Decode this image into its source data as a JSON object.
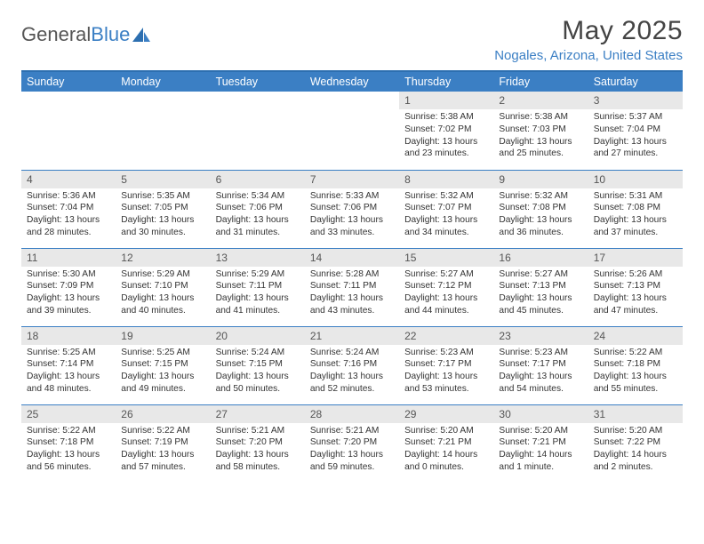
{
  "logo": {
    "text_a": "General",
    "text_b": "Blue"
  },
  "header": {
    "month_title": "May 2025",
    "location": "Nogales, Arizona, United States"
  },
  "styling": {
    "header_bg": "#3b7fc4",
    "header_text_color": "#ffffff",
    "daynum_bg": "#e8e8e8",
    "cell_border_color": "#3b7fc4",
    "body_text_color": "#333333",
    "title_color": "#444444",
    "location_color": "#3b7fc4",
    "font_family": "Arial",
    "title_fontsize_pt": 22,
    "location_fontsize_pt": 11,
    "dayhead_fontsize_pt": 9,
    "cell_fontsize_pt": 7.5
  },
  "day_headers": [
    "Sunday",
    "Monday",
    "Tuesday",
    "Wednesday",
    "Thursday",
    "Friday",
    "Saturday"
  ],
  "weeks": [
    [
      {
        "num": "",
        "sunrise": "",
        "sunset": "",
        "daylight": ""
      },
      {
        "num": "",
        "sunrise": "",
        "sunset": "",
        "daylight": ""
      },
      {
        "num": "",
        "sunrise": "",
        "sunset": "",
        "daylight": ""
      },
      {
        "num": "",
        "sunrise": "",
        "sunset": "",
        "daylight": ""
      },
      {
        "num": "1",
        "sunrise": "Sunrise: 5:38 AM",
        "sunset": "Sunset: 7:02 PM",
        "daylight": "Daylight: 13 hours and 23 minutes."
      },
      {
        "num": "2",
        "sunrise": "Sunrise: 5:38 AM",
        "sunset": "Sunset: 7:03 PM",
        "daylight": "Daylight: 13 hours and 25 minutes."
      },
      {
        "num": "3",
        "sunrise": "Sunrise: 5:37 AM",
        "sunset": "Sunset: 7:04 PM",
        "daylight": "Daylight: 13 hours and 27 minutes."
      }
    ],
    [
      {
        "num": "4",
        "sunrise": "Sunrise: 5:36 AM",
        "sunset": "Sunset: 7:04 PM",
        "daylight": "Daylight: 13 hours and 28 minutes."
      },
      {
        "num": "5",
        "sunrise": "Sunrise: 5:35 AM",
        "sunset": "Sunset: 7:05 PM",
        "daylight": "Daylight: 13 hours and 30 minutes."
      },
      {
        "num": "6",
        "sunrise": "Sunrise: 5:34 AM",
        "sunset": "Sunset: 7:06 PM",
        "daylight": "Daylight: 13 hours and 31 minutes."
      },
      {
        "num": "7",
        "sunrise": "Sunrise: 5:33 AM",
        "sunset": "Sunset: 7:06 PM",
        "daylight": "Daylight: 13 hours and 33 minutes."
      },
      {
        "num": "8",
        "sunrise": "Sunrise: 5:32 AM",
        "sunset": "Sunset: 7:07 PM",
        "daylight": "Daylight: 13 hours and 34 minutes."
      },
      {
        "num": "9",
        "sunrise": "Sunrise: 5:32 AM",
        "sunset": "Sunset: 7:08 PM",
        "daylight": "Daylight: 13 hours and 36 minutes."
      },
      {
        "num": "10",
        "sunrise": "Sunrise: 5:31 AM",
        "sunset": "Sunset: 7:08 PM",
        "daylight": "Daylight: 13 hours and 37 minutes."
      }
    ],
    [
      {
        "num": "11",
        "sunrise": "Sunrise: 5:30 AM",
        "sunset": "Sunset: 7:09 PM",
        "daylight": "Daylight: 13 hours and 39 minutes."
      },
      {
        "num": "12",
        "sunrise": "Sunrise: 5:29 AM",
        "sunset": "Sunset: 7:10 PM",
        "daylight": "Daylight: 13 hours and 40 minutes."
      },
      {
        "num": "13",
        "sunrise": "Sunrise: 5:29 AM",
        "sunset": "Sunset: 7:11 PM",
        "daylight": "Daylight: 13 hours and 41 minutes."
      },
      {
        "num": "14",
        "sunrise": "Sunrise: 5:28 AM",
        "sunset": "Sunset: 7:11 PM",
        "daylight": "Daylight: 13 hours and 43 minutes."
      },
      {
        "num": "15",
        "sunrise": "Sunrise: 5:27 AM",
        "sunset": "Sunset: 7:12 PM",
        "daylight": "Daylight: 13 hours and 44 minutes."
      },
      {
        "num": "16",
        "sunrise": "Sunrise: 5:27 AM",
        "sunset": "Sunset: 7:13 PM",
        "daylight": "Daylight: 13 hours and 45 minutes."
      },
      {
        "num": "17",
        "sunrise": "Sunrise: 5:26 AM",
        "sunset": "Sunset: 7:13 PM",
        "daylight": "Daylight: 13 hours and 47 minutes."
      }
    ],
    [
      {
        "num": "18",
        "sunrise": "Sunrise: 5:25 AM",
        "sunset": "Sunset: 7:14 PM",
        "daylight": "Daylight: 13 hours and 48 minutes."
      },
      {
        "num": "19",
        "sunrise": "Sunrise: 5:25 AM",
        "sunset": "Sunset: 7:15 PM",
        "daylight": "Daylight: 13 hours and 49 minutes."
      },
      {
        "num": "20",
        "sunrise": "Sunrise: 5:24 AM",
        "sunset": "Sunset: 7:15 PM",
        "daylight": "Daylight: 13 hours and 50 minutes."
      },
      {
        "num": "21",
        "sunrise": "Sunrise: 5:24 AM",
        "sunset": "Sunset: 7:16 PM",
        "daylight": "Daylight: 13 hours and 52 minutes."
      },
      {
        "num": "22",
        "sunrise": "Sunrise: 5:23 AM",
        "sunset": "Sunset: 7:17 PM",
        "daylight": "Daylight: 13 hours and 53 minutes."
      },
      {
        "num": "23",
        "sunrise": "Sunrise: 5:23 AM",
        "sunset": "Sunset: 7:17 PM",
        "daylight": "Daylight: 13 hours and 54 minutes."
      },
      {
        "num": "24",
        "sunrise": "Sunrise: 5:22 AM",
        "sunset": "Sunset: 7:18 PM",
        "daylight": "Daylight: 13 hours and 55 minutes."
      }
    ],
    [
      {
        "num": "25",
        "sunrise": "Sunrise: 5:22 AM",
        "sunset": "Sunset: 7:18 PM",
        "daylight": "Daylight: 13 hours and 56 minutes."
      },
      {
        "num": "26",
        "sunrise": "Sunrise: 5:22 AM",
        "sunset": "Sunset: 7:19 PM",
        "daylight": "Daylight: 13 hours and 57 minutes."
      },
      {
        "num": "27",
        "sunrise": "Sunrise: 5:21 AM",
        "sunset": "Sunset: 7:20 PM",
        "daylight": "Daylight: 13 hours and 58 minutes."
      },
      {
        "num": "28",
        "sunrise": "Sunrise: 5:21 AM",
        "sunset": "Sunset: 7:20 PM",
        "daylight": "Daylight: 13 hours and 59 minutes."
      },
      {
        "num": "29",
        "sunrise": "Sunrise: 5:20 AM",
        "sunset": "Sunset: 7:21 PM",
        "daylight": "Daylight: 14 hours and 0 minutes."
      },
      {
        "num": "30",
        "sunrise": "Sunrise: 5:20 AM",
        "sunset": "Sunset: 7:21 PM",
        "daylight": "Daylight: 14 hours and 1 minute."
      },
      {
        "num": "31",
        "sunrise": "Sunrise: 5:20 AM",
        "sunset": "Sunset: 7:22 PM",
        "daylight": "Daylight: 14 hours and 2 minutes."
      }
    ]
  ]
}
